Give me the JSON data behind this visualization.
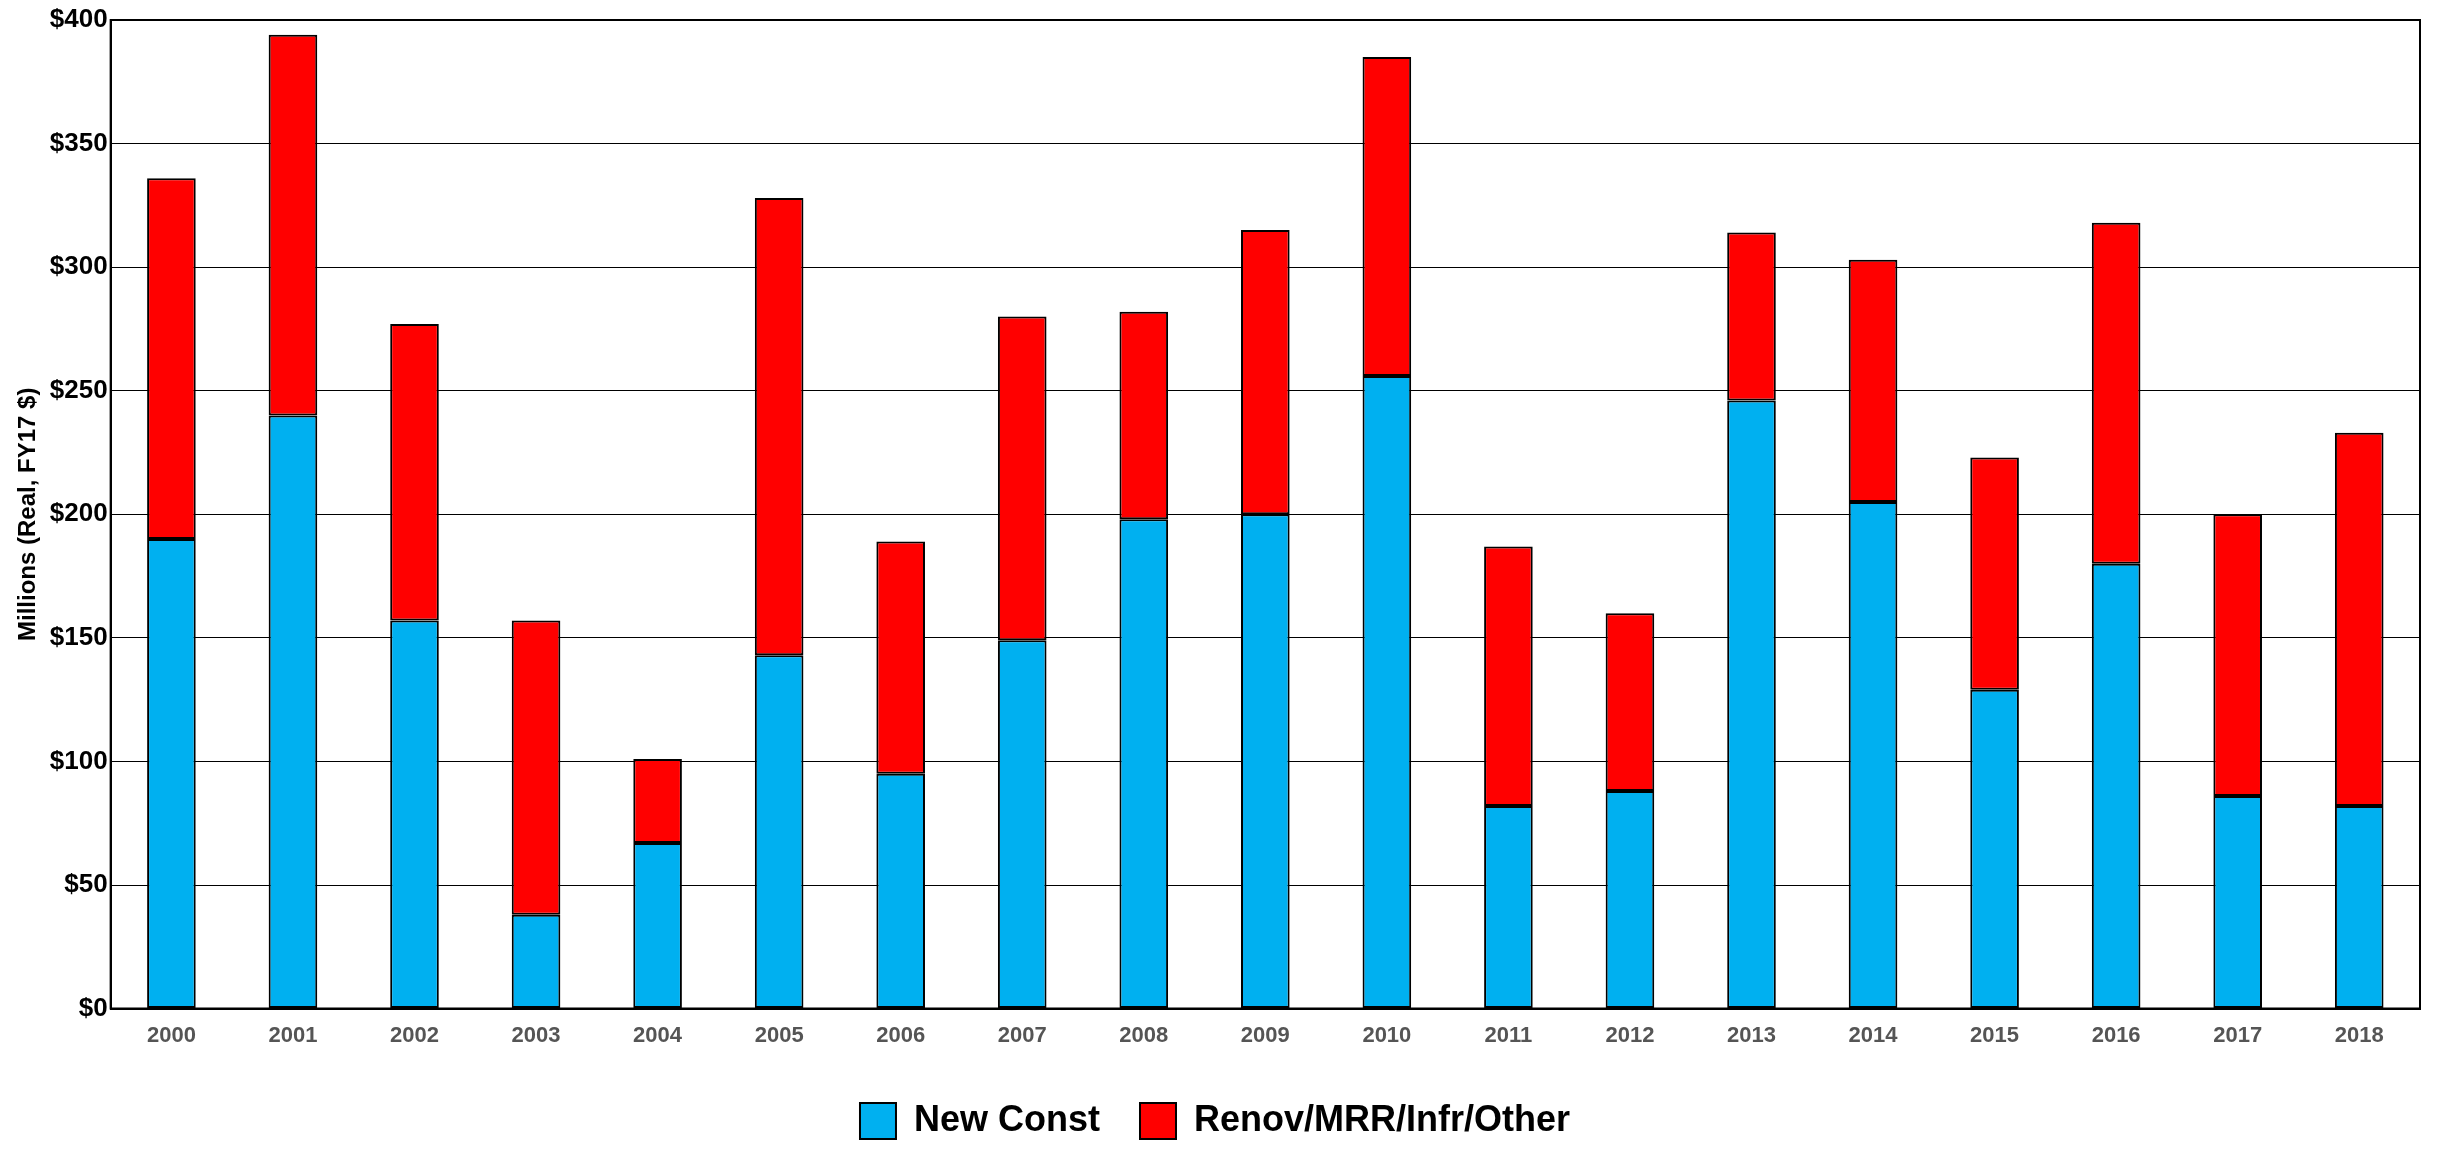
{
  "chart_data": {
    "type": "bar",
    "stacked": true,
    "ylabel": "Millions (Real, FY17 $)",
    "categories": [
      "2000",
      "2001",
      "2002",
      "2003",
      "2004",
      "2005",
      "2006",
      "2007",
      "2008",
      "2009",
      "2010",
      "2011",
      "2012",
      "2013",
      "2014",
      "2015",
      "2016",
      "2017",
      "2018"
    ],
    "series": [
      {
        "name": "New Const",
        "color": "#00b0f0",
        "values": [
          190,
          240,
          157,
          38,
          67,
          143,
          95,
          149,
          198,
          200,
          256,
          82,
          88,
          246,
          205,
          129,
          180,
          86,
          82
        ]
      },
      {
        "name": "Renov/MRR/Infr/Other",
        "color": "#ff0000",
        "values": [
          146,
          154,
          120,
          119,
          34,
          185,
          94,
          131,
          84,
          115,
          129,
          105,
          72,
          68,
          98,
          94,
          138,
          114,
          151
        ]
      }
    ],
    "ylim": [
      0,
      400
    ],
    "yticks": [
      {
        "value": 0,
        "label": "$0"
      },
      {
        "value": 50,
        "label": "$50"
      },
      {
        "value": 100,
        "label": "$100"
      },
      {
        "value": 150,
        "label": "$150"
      },
      {
        "value": 200,
        "label": "$200"
      },
      {
        "value": 250,
        "label": "$250"
      },
      {
        "value": 300,
        "label": "$300"
      },
      {
        "value": 350,
        "label": "$350"
      },
      {
        "value": 400,
        "label": "$400"
      }
    ],
    "grid": "y",
    "legend": "bottom"
  }
}
